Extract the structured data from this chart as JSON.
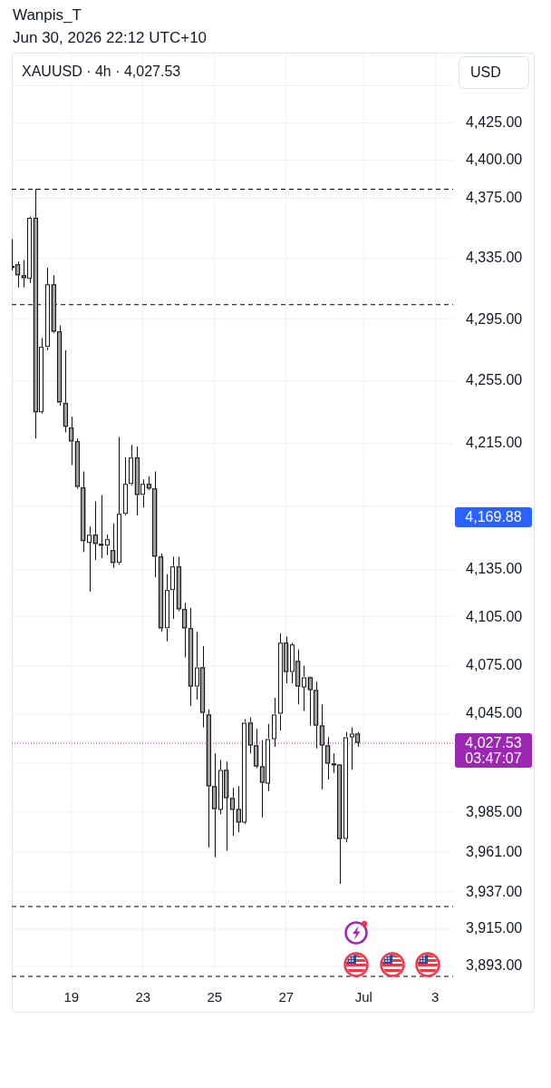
{
  "chart_data": {
    "type": "candlestick",
    "title": "XAUUSD · 4h · 4,027.53",
    "ylabel": "USD",
    "annotations": [
      "Wanpis_T",
      "Jun 30, 2026 22:12 UTC+10",
      "4,169.88"
    ],
    "categories": [
      null,
      null,
      null,
      null,
      null,
      null,
      null,
      null,
      null,
      null,
      "19",
      null,
      null,
      null,
      null,
      null,
      null,
      null,
      null,
      null,
      null,
      null,
      "23",
      null,
      null,
      null,
      null,
      null,
      null,
      null,
      null,
      null,
      null,
      null,
      "25",
      null,
      null,
      null,
      null,
      null,
      null,
      null,
      null,
      null,
      null,
      null,
      "27",
      null,
      null,
      null,
      null,
      null,
      null,
      null,
      null,
      null,
      null,
      null,
      null,
      "Jul",
      null,
      null,
      null,
      null,
      null,
      null,
      null,
      null,
      null,
      null,
      null,
      "3",
      null,
      null,
      null
    ],
    "ohlc": [
      [
        4330,
        4348,
        4327,
        4329
      ],
      [
        4331,
        4333,
        4316,
        4324
      ],
      [
        4324,
        4334,
        4316,
        4322
      ],
      [
        4322,
        4363,
        4319,
        4362
      ],
      [
        4362,
        4381,
        4218,
        4235
      ],
      [
        4235,
        4283,
        4234,
        4277
      ],
      [
        4277,
        4329,
        4275,
        4318
      ],
      [
        4318,
        4324,
        4286,
        4287
      ],
      [
        4287,
        4291,
        4239,
        4241
      ],
      [
        4241,
        4275,
        4222,
        4226
      ],
      [
        4225,
        4232,
        4201,
        4216
      ],
      [
        4216,
        4218,
        4186,
        4187
      ],
      [
        4187,
        4197,
        4146,
        4153
      ],
      [
        4152,
        4162,
        4121,
        4157
      ],
      [
        4157,
        4178,
        4141,
        4151
      ],
      [
        4151,
        4182,
        4142,
        4150
      ],
      [
        4150,
        4157,
        4144,
        4154
      ],
      [
        4147,
        4164,
        4136,
        4139
      ],
      [
        4139,
        4219,
        4138,
        4170
      ],
      [
        4170,
        4206,
        4169,
        4189
      ],
      [
        4189,
        4214,
        4188,
        4206
      ],
      [
        4206,
        4213,
        4169,
        4182
      ],
      [
        4182,
        4192,
        4174,
        4189
      ],
      [
        4189,
        4194,
        4185,
        4186
      ],
      [
        4186,
        4197,
        4130,
        4143
      ],
      [
        4143,
        4145,
        4096,
        4098
      ],
      [
        4098,
        4132,
        4090,
        4122
      ],
      [
        4122,
        4143,
        4104,
        4137
      ],
      [
        4137,
        4143,
        4109,
        4110
      ],
      [
        4110,
        4114,
        4080,
        4098
      ],
      [
        4098,
        4111,
        4050,
        4062
      ],
      [
        4062,
        4096,
        4054,
        4074
      ],
      [
        4074,
        4087,
        4037,
        4046
      ],
      [
        4045,
        4048,
        3964,
        4001
      ],
      [
        4001,
        4021,
        3958,
        3987
      ],
      [
        3987,
        4017,
        3984,
        4011
      ],
      [
        4011,
        4016,
        3962,
        3994
      ],
      [
        3994,
        4000,
        3971,
        3987
      ],
      [
        3987,
        4001,
        3973,
        3979
      ],
      [
        3979,
        4042,
        3978,
        4040
      ],
      [
        4040,
        4043,
        4021,
        4026
      ],
      [
        4026,
        4036,
        4012,
        4013
      ],
      [
        4013,
        4029,
        3982,
        4003
      ],
      [
        4003,
        4039,
        3998,
        4030
      ],
      [
        4030,
        4055,
        4025,
        4045
      ],
      [
        4045,
        4095,
        4035,
        4089
      ],
      [
        4089,
        4093,
        4064,
        4071
      ],
      [
        4071,
        4089,
        4064,
        4088
      ],
      [
        4078,
        4085,
        4051,
        4062
      ],
      [
        4062,
        4075,
        4047,
        4068
      ],
      [
        4068,
        4068,
        4038,
        4060
      ],
      [
        4060,
        4065,
        4024,
        4038
      ],
      [
        4038,
        4051,
        3999,
        4026
      ],
      [
        4026,
        4031,
        4005,
        4015
      ],
      [
        4015,
        4021,
        4009,
        4014
      ],
      [
        4014,
        4014,
        3942,
        3969
      ],
      [
        3969,
        4034,
        3967,
        4031
      ],
      [
        4031,
        4037,
        4011,
        4033
      ],
      [
        4033,
        4034,
        4025,
        4027.53
      ],
      null,
      null,
      null,
      null,
      null,
      null,
      null,
      null,
      null,
      null,
      null,
      null,
      null,
      null,
      null,
      null
    ],
    "colors": [
      "#9e9e9e",
      "#9e9e9e",
      "#9e9e9e",
      "#ffffff",
      "#9e9e9e",
      "#ffffff",
      "#ffffff",
      "#9e9e9e",
      "#9e9e9e",
      "#9e9e9e",
      "#9e9e9e",
      "#9e9e9e",
      "#9e9e9e",
      "#ffffff",
      "#9e9e9e",
      "#9e9e9e",
      "#ffffff",
      "#9e9e9e",
      "#ffffff",
      "#ffffff",
      "#ffffff",
      "#9e9e9e",
      "#ffffff",
      "#9e9e9e",
      "#9e9e9e",
      "#9e9e9e",
      "#ffffff",
      "#ffffff",
      "#9e9e9e",
      "#9e9e9e",
      "#9e9e9e",
      "#ffffff",
      "#9e9e9e",
      "#9e9e9e",
      "#9e9e9e",
      "#ffffff",
      "#9e9e9e",
      "#9e9e9e",
      "#9e9e9e",
      "#ffffff",
      "#9e9e9e",
      "#9e9e9e",
      "#9e9e9e",
      "#ffffff",
      "#ffffff",
      "#ffffff",
      "#9e9e9e",
      "#ffffff",
      "#9e9e9e",
      "#ffffff",
      "#9e9e9e",
      "#9e9e9e",
      "#9e9e9e",
      "#9e9e9e",
      "#9e9e9e",
      "#9e9e9e",
      "#ffffff",
      "#ffffff",
      "#9e9e9e",
      null,
      null,
      null,
      null,
      null,
      null,
      null,
      null,
      null,
      null,
      null,
      null,
      null,
      null,
      null,
      null
    ],
    "color": "#131313",
    "ylim": [
      3884,
      4473
    ],
    "yticks": [
      {
        "value": 3893,
        "label": "3,893.00"
      },
      {
        "value": 3915,
        "label": "3,915.00"
      },
      {
        "value": 3937,
        "label": "3,937.00"
      },
      {
        "value": 3961,
        "label": "3,961.00"
      },
      {
        "value": 3985,
        "label": "3,985.00"
      },
      {
        "value": 4015,
        "label": null
      },
      {
        "value": 4045,
        "label": "4,045.00"
      },
      {
        "value": 4075,
        "label": "4,075.00"
      },
      {
        "value": 4105,
        "label": "4,105.00"
      },
      {
        "value": 4135,
        "label": "4,135.00"
      },
      {
        "value": 4175,
        "label": null
      },
      {
        "value": 4215,
        "label": "4,215.00"
      },
      {
        "value": 4255,
        "label": "4,255.00"
      },
      {
        "value": 4295,
        "label": "4,295.00"
      },
      {
        "value": 4335,
        "label": "4,335.00"
      },
      {
        "value": 4375,
        "label": "4,375.00"
      },
      {
        "value": 4400,
        "label": "4,400.00"
      },
      {
        "value": 4425,
        "label": "4,425.00"
      },
      {
        "value": 4450,
        "label": null
      }
    ],
    "log": "y",
    "grid": true,
    "ref_lines": [
      {
        "axis": "y",
        "value": 4381,
        "color": "#000000",
        "line_style": "dashed"
      },
      {
        "axis": "y",
        "value": 4305,
        "color": "#000000",
        "line_style": "dashed"
      },
      {
        "axis": "y",
        "value": 3929,
        "color": "#000000",
        "line_style": "dashed"
      },
      {
        "axis": "y",
        "value": 3887,
        "color": "#000000",
        "line_style": "dashed"
      },
      {
        "axis": "y",
        "value": 4027.53,
        "label": "4,027.53\n03:47:07",
        "color": "#9c27b0",
        "line_style": "dotted"
      }
    ]
  }
}
